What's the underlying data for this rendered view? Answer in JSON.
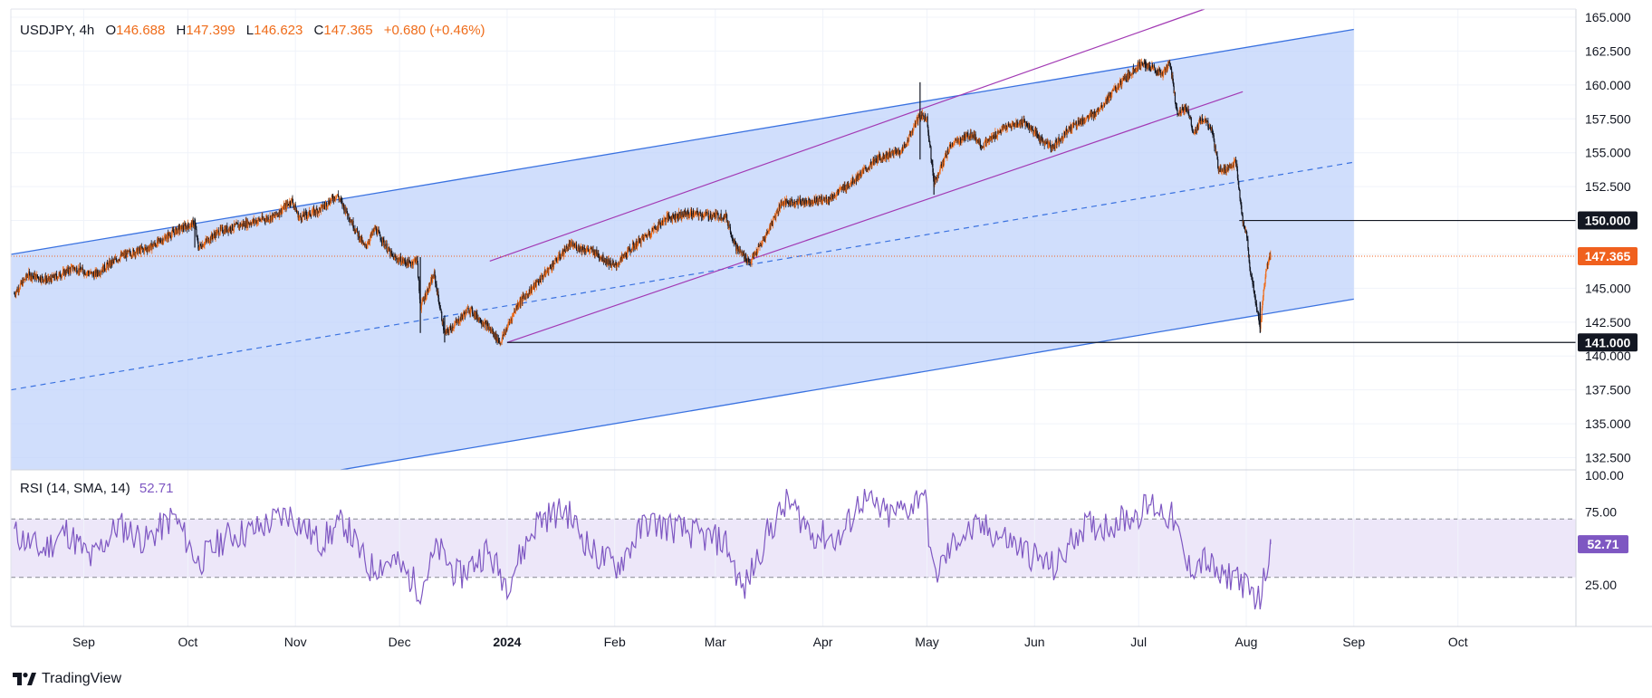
{
  "header": {
    "symbol": "USDJPY",
    "timeframe": "4h",
    "o_label": "O",
    "open": "146.688",
    "h_label": "H",
    "high": "147.399",
    "l_label": "L",
    "low": "146.623",
    "c_label": "C",
    "close": "147.365",
    "change": "+0.680 (+0.46%)"
  },
  "rsi_header": {
    "label": "RSI (14, SMA, 14)",
    "value": "52.71"
  },
  "footer": {
    "brand": "TradingView"
  },
  "colors": {
    "up": "#ef6c1a",
    "down": "#131722",
    "channel_fill": "#bcd0fb",
    "channel_line": "#3a72e0",
    "purple": "#a23ab4",
    "rsi_line": "#7e57c2",
    "rsi_band": "#ede7f9",
    "price_badge": "#f0601e"
  },
  "chart_data": [
    {
      "type": "candlestick",
      "symbol": "USDJPY",
      "interval": "4h",
      "y_axis": {
        "ticks": [
          "165.000",
          "162.500",
          "160.000",
          "157.500",
          "155.000",
          "152.500",
          "150.000",
          "147.500",
          "145.000",
          "142.500",
          "140.000",
          "137.500",
          "135.000",
          "132.500"
        ],
        "range": [
          131.6,
          165.6
        ]
      },
      "x_axis": {
        "ticks": [
          "Sep",
          "Oct",
          "Nov",
          "Dec",
          "2024",
          "Feb",
          "Mar",
          "Apr",
          "May",
          "Jun",
          "Jul",
          "Aug",
          "Sep",
          "Oct"
        ],
        "range": [
          "2023-08-11",
          "2024-11-04"
        ]
      },
      "price_path": [
        [
          "2023-08-12",
          144.6
        ],
        [
          "2023-08-16",
          146.0
        ],
        [
          "2023-08-22",
          145.6
        ],
        [
          "2023-08-29",
          146.5
        ],
        [
          "2023-09-04",
          146.0
        ],
        [
          "2023-09-12",
          147.4
        ],
        [
          "2023-09-20",
          148.0
        ],
        [
          "2023-09-28",
          149.3
        ],
        [
          "2023-10-03",
          149.8
        ],
        [
          "2023-10-04",
          148.0
        ],
        [
          "2023-10-10",
          149.2
        ],
        [
          "2023-10-18",
          149.8
        ],
        [
          "2023-10-26",
          150.3
        ],
        [
          "2023-10-31",
          151.5
        ],
        [
          "2023-11-02",
          150.2
        ],
        [
          "2023-11-08",
          150.8
        ],
        [
          "2023-11-13",
          151.9
        ],
        [
          "2023-11-16",
          150.5
        ],
        [
          "2023-11-21",
          148.0
        ],
        [
          "2023-11-24",
          149.4
        ],
        [
          "2023-11-29",
          147.3
        ],
        [
          "2023-12-04",
          146.8
        ],
        [
          "2023-12-06",
          147.2
        ],
        [
          "2023-12-07",
          143.6
        ],
        [
          "2023-12-11",
          146.0
        ],
        [
          "2023-12-14",
          141.6
        ],
        [
          "2023-12-18",
          142.6
        ],
        [
          "2023-12-21",
          143.5
        ],
        [
          "2023-12-27",
          142.0
        ],
        [
          "2023-12-30",
          141.0
        ],
        [
          "2024-01-04",
          143.8
        ],
        [
          "2024-01-10",
          145.5
        ],
        [
          "2024-01-16",
          147.3
        ],
        [
          "2024-01-19",
          148.2
        ],
        [
          "2024-01-26",
          147.7
        ],
        [
          "2024-02-01",
          146.6
        ],
        [
          "2024-02-06",
          148.0
        ],
        [
          "2024-02-12",
          149.3
        ],
        [
          "2024-02-16",
          150.2
        ],
        [
          "2024-02-22",
          150.5
        ],
        [
          "2024-02-28",
          150.4
        ],
        [
          "2024-03-04",
          150.3
        ],
        [
          "2024-03-07",
          148.0
        ],
        [
          "2024-03-11",
          146.9
        ],
        [
          "2024-03-15",
          148.6
        ],
        [
          "2024-03-20",
          151.3
        ],
        [
          "2024-03-27",
          151.4
        ],
        [
          "2024-04-03",
          151.6
        ],
        [
          "2024-04-10",
          153.0
        ],
        [
          "2024-04-17",
          154.6
        ],
        [
          "2024-04-24",
          155.2
        ],
        [
          "2024-04-29",
          157.8
        ],
        [
          "2024-05-01",
          157.5
        ],
        [
          "2024-05-03",
          152.8
        ],
        [
          "2024-05-08",
          155.6
        ],
        [
          "2024-05-14",
          156.4
        ],
        [
          "2024-05-17",
          155.5
        ],
        [
          "2024-05-23",
          156.8
        ],
        [
          "2024-05-29",
          157.3
        ],
        [
          "2024-06-03",
          155.9
        ],
        [
          "2024-06-06",
          155.4
        ],
        [
          "2024-06-12",
          157.0
        ],
        [
          "2024-06-18",
          157.8
        ],
        [
          "2024-06-24",
          159.6
        ],
        [
          "2024-07-01",
          161.5
        ],
        [
          "2024-07-04",
          161.4
        ],
        [
          "2024-07-08",
          160.8
        ],
        [
          "2024-07-10",
          161.7
        ],
        [
          "2024-07-12",
          158.0
        ],
        [
          "2024-07-15",
          158.3
        ],
        [
          "2024-07-17",
          156.3
        ],
        [
          "2024-07-19",
          157.5
        ],
        [
          "2024-07-22",
          156.8
        ],
        [
          "2024-07-24",
          153.8
        ],
        [
          "2024-07-26",
          153.8
        ],
        [
          "2024-07-29",
          154.3
        ],
        [
          "2024-07-31",
          149.8
        ],
        [
          "2024-08-01",
          149.4
        ],
        [
          "2024-08-02",
          146.5
        ],
        [
          "2024-08-05",
          142.0
        ],
        [
          "2024-08-06",
          144.8
        ],
        [
          "2024-08-07",
          146.7
        ],
        [
          "2024-08-08",
          147.4
        ]
      ],
      "spikes": [
        [
          "2023-10-03",
          150.2,
          148.0
        ],
        [
          "2023-12-07",
          147.3,
          141.7
        ],
        [
          "2023-12-14",
          143.0,
          141.0
        ],
        [
          "2024-04-29",
          160.2,
          154.5
        ],
        [
          "2024-05-03",
          153.5,
          151.9
        ],
        [
          "2024-07-03",
          161.9,
          161.0
        ],
        [
          "2024-08-05",
          144.0,
          141.7
        ]
      ],
      "last_price": "147.365",
      "horizontal_levels": [
        {
          "label": "150.000",
          "value": 150.0,
          "from": "2024-07-30"
        },
        {
          "label": "141.000",
          "value": 141.0,
          "from": "2024-01-01"
        }
      ],
      "current_price_line": 147.365,
      "regression_channel": {
        "start": "2023-08-11",
        "end": "2024-09-01",
        "upper": [
          147.5,
          164.1
        ],
        "mid": [
          137.5,
          154.3
        ],
        "lower": [
          127.5,
          144.2
        ]
      },
      "purple_channel": {
        "upper": {
          "from": [
            "2023-12-27",
            147.0
          ],
          "to": [
            "2024-07-20",
            165.6
          ]
        },
        "lower": {
          "from": [
            "2024-01-01",
            141.0
          ],
          "to": [
            "2024-07-31",
            159.5
          ]
        }
      }
    },
    {
      "type": "line",
      "name": "RSI (14, SMA, 14)",
      "last_value": "52.71",
      "y_axis": {
        "ticks": [
          "100.00",
          "75.00",
          "25.00"
        ],
        "range": [
          0,
          100
        ]
      },
      "bands": {
        "upper": 70,
        "lower": 30
      },
      "path": [
        [
          "2023-08-12",
          60
        ],
        [
          "2023-08-20",
          48
        ],
        [
          "2023-08-27",
          62
        ],
        [
          "2023-09-03",
          42
        ],
        [
          "2023-09-11",
          66
        ],
        [
          "2023-09-19",
          55
        ],
        [
          "2023-09-27",
          72
        ],
        [
          "2023-10-04",
          40
        ],
        [
          "2023-10-12",
          58
        ],
        [
          "2023-10-20",
          62
        ],
        [
          "2023-10-30",
          74
        ],
        [
          "2023-11-08",
          54
        ],
        [
          "2023-11-15",
          68
        ],
        [
          "2023-11-22",
          36
        ],
        [
          "2023-11-29",
          42
        ],
        [
          "2023-12-07",
          22
        ],
        [
          "2023-12-12",
          50
        ],
        [
          "2023-12-18",
          30
        ],
        [
          "2023-12-26",
          48
        ],
        [
          "2024-01-01",
          26
        ],
        [
          "2024-01-10",
          70
        ],
        [
          "2024-01-18",
          76
        ],
        [
          "2024-01-26",
          46
        ],
        [
          "2024-02-02",
          38
        ],
        [
          "2024-02-10",
          68
        ],
        [
          "2024-02-18",
          64
        ],
        [
          "2024-02-26",
          58
        ],
        [
          "2024-03-04",
          54
        ],
        [
          "2024-03-09",
          20
        ],
        [
          "2024-03-16",
          60
        ],
        [
          "2024-03-22",
          82
        ],
        [
          "2024-03-29",
          60
        ],
        [
          "2024-04-06",
          56
        ],
        [
          "2024-04-12",
          84
        ],
        [
          "2024-04-20",
          72
        ],
        [
          "2024-04-27",
          80
        ],
        [
          "2024-04-30",
          92
        ],
        [
          "2024-05-03",
          30
        ],
        [
          "2024-05-10",
          58
        ],
        [
          "2024-05-17",
          64
        ],
        [
          "2024-05-24",
          56
        ],
        [
          "2024-06-01",
          44
        ],
        [
          "2024-06-07",
          36
        ],
        [
          "2024-06-14",
          64
        ],
        [
          "2024-06-22",
          66
        ],
        [
          "2024-06-29",
          72
        ],
        [
          "2024-07-05",
          80
        ],
        [
          "2024-07-11",
          70
        ],
        [
          "2024-07-15",
          36
        ],
        [
          "2024-07-20",
          42
        ],
        [
          "2024-07-25",
          28
        ],
        [
          "2024-07-29",
          34
        ],
        [
          "2024-08-01",
          22
        ],
        [
          "2024-08-05",
          14
        ],
        [
          "2024-08-07",
          40
        ],
        [
          "2024-08-08",
          52.71
        ]
      ]
    }
  ]
}
